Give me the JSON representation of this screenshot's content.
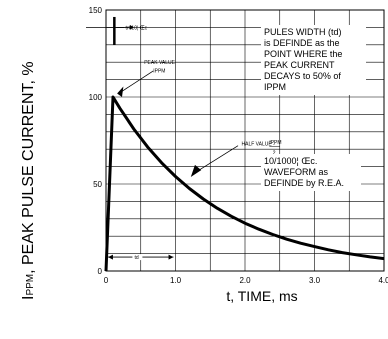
{
  "chart_data": {
    "type": "line",
    "xlabel": "t, TIME, ms",
    "ylabel_sub": "PPM",
    "ylabel_main": ", PEAK PULSE CURRENT, %",
    "ylabel_prefix": "I",
    "xlim": [
      0,
      4.0
    ],
    "ylim": [
      0,
      150
    ],
    "x_ticks": [
      "0",
      "1.0",
      "2.0",
      "3.0",
      "4.0"
    ],
    "x_tick_values": [
      0,
      1,
      2,
      3,
      4
    ],
    "y_ticks": [
      "0",
      "50",
      "100",
      "150"
    ],
    "y_tick_values": [
      0,
      50,
      100,
      150
    ],
    "grid": true,
    "series": [
      {
        "x": [
          0,
          0.1,
          0.2,
          0.4,
          0.6,
          0.8,
          1.0,
          1.2,
          1.4,
          1.6,
          1.8,
          2.0,
          2.2,
          2.4,
          2.6,
          2.8,
          3.0,
          3.2,
          3.4,
          3.6,
          3.8,
          4.0
        ],
        "y": [
          0,
          100,
          93.5,
          81.6,
          71.2,
          62.2,
          54.3,
          47.4,
          41.4,
          36.1,
          31.5,
          27.5,
          24.0,
          21.0,
          18.3,
          16.0,
          14.0,
          12.2,
          10.6,
          9.3,
          8.1,
          7.1
        ]
      }
    ],
    "annotations": {
      "tr_label": "tr=10¦ Œc",
      "peak_label": "PEAK VALUE",
      "peak_sub": "IPPM",
      "half_label": "HALF VALUE - ",
      "half_frac_top": "IPPM",
      "half_frac_bottom": "2",
      "td_label": "td",
      "note_top": [
        "PULES WIDTH (td)",
        "is DEFINDE as the",
        "POINT WHERE the",
        "PEAK CURRENT",
        "DECAYS to 50% of",
        "IPPM"
      ],
      "note_bottom": [
        "10/1000¦ Œc.",
        "WAVEFORM as",
        "DEFINDE by R.E.A."
      ]
    }
  }
}
